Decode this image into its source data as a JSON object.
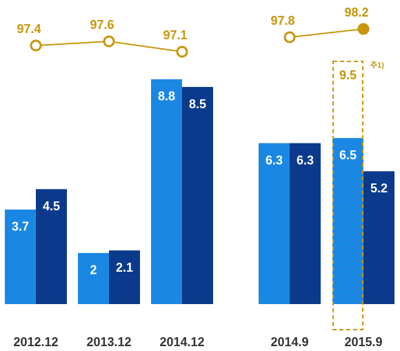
{
  "chart_data": [
    {
      "type": "bar",
      "categories": [
        "2012.12",
        "2013.12",
        "2014.12"
      ],
      "series": [
        {
          "color": "#1a88e3",
          "values": [
            3.7,
            2.0,
            8.8
          ]
        },
        {
          "color": "#0b3a8c",
          "values": [
            4.5,
            2.1,
            8.5
          ]
        }
      ],
      "line": {
        "color": "#c8960c",
        "values": [
          97.4,
          97.6,
          97.1
        ],
        "filled": [
          false,
          false,
          false
        ]
      },
      "ylim": [
        -1,
        10.5
      ],
      "y2lim": [
        96,
        99
      ]
    },
    {
      "type": "bar",
      "categories": [
        "2014.9",
        "2015.9"
      ],
      "series": [
        {
          "color": "#1a88e3",
          "values": [
            6.3,
            6.5
          ]
        },
        {
          "color": "#0b3a8c",
          "values": [
            6.3,
            5.2
          ]
        }
      ],
      "line": {
        "color": "#c8960c",
        "values": [
          97.8,
          98.2
        ],
        "filled": [
          false,
          true
        ]
      },
      "annotation": {
        "category_index": 1,
        "value": 9.5,
        "note": "주1)"
      },
      "ylim": [
        -1,
        10.5
      ],
      "y2lim": [
        96,
        99
      ]
    }
  ]
}
